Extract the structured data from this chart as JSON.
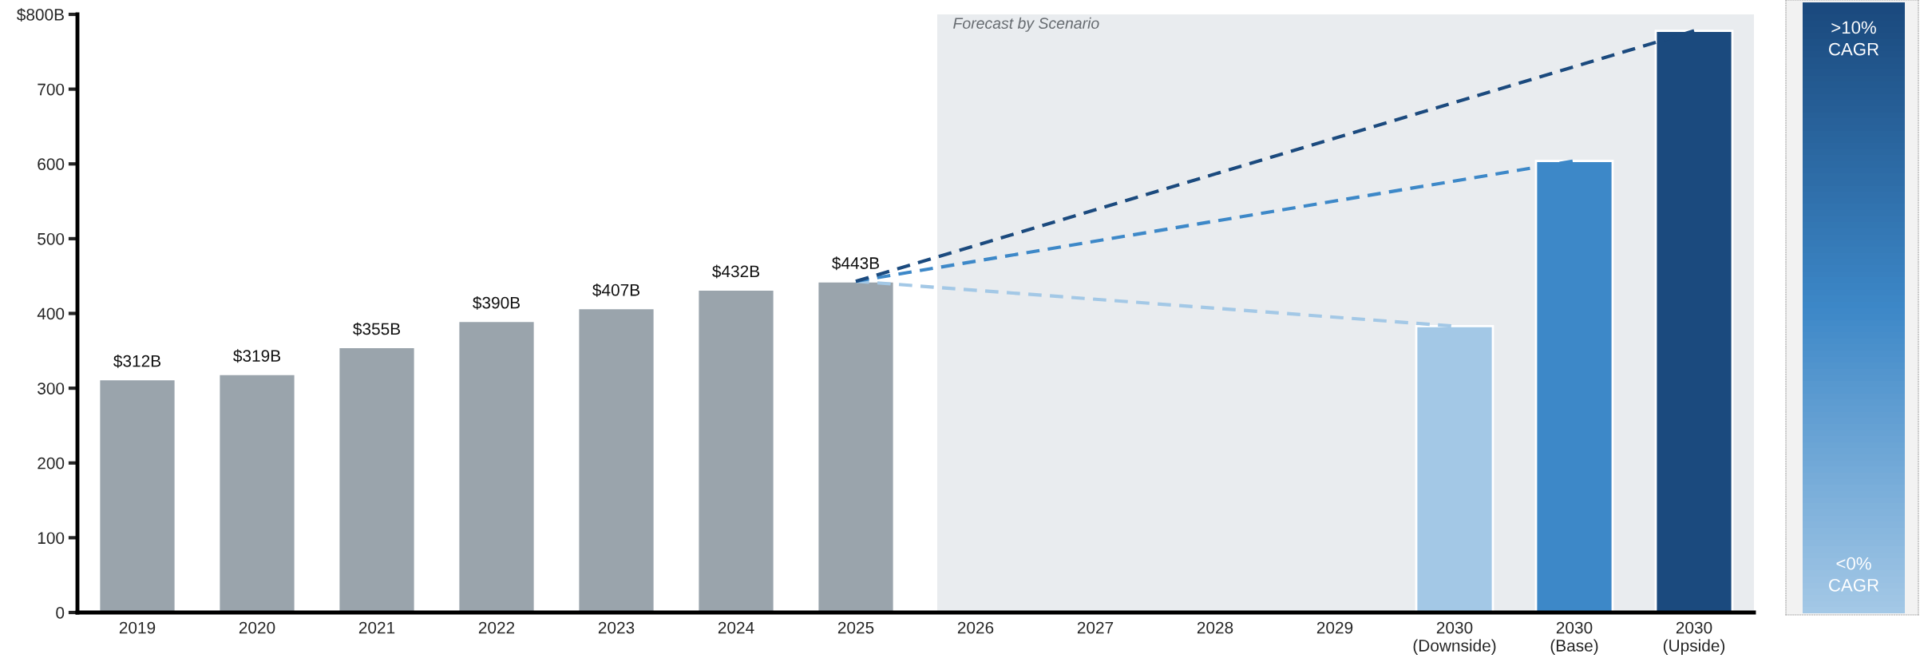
{
  "chart_data": {
    "type": "bar",
    "categories": [
      "2019",
      "2020",
      "2021",
      "2022",
      "2023",
      "2024",
      "2025",
      "2026",
      "2027",
      "2028",
      "2029",
      "2030\n(Downside)",
      "2030\n(Base)",
      "2030\n(Upside)"
    ],
    "series": [
      {
        "values": [
          312,
          319,
          355,
          390,
          407,
          432,
          443,
          null,
          null,
          null,
          null,
          383,
          604,
          778
        ],
        "colors": [
          "#9aa4ac",
          "#9aa4ac",
          "#9aa4ac",
          "#9aa4ac",
          "#9aa4ac",
          "#9aa4ac",
          "#9aa4ac",
          null,
          null,
          null,
          null,
          "#a3c8e6",
          "#3d88c8",
          "#1b4a7e"
        ],
        "value_labels": [
          "$312B",
          "$319B",
          "$355B",
          "$390B",
          "$407B",
          "$432B",
          "$443B",
          null,
          null,
          null,
          null,
          null,
          null,
          null
        ]
      },
      {
        "type": "line",
        "color": "#a3c8e6",
        "line_style": "dashed",
        "values": [
          null,
          null,
          null,
          null,
          null,
          null,
          443,
          null,
          null,
          null,
          null,
          383,
          null,
          null
        ]
      },
      {
        "type": "line",
        "color": "#3d88c8",
        "line_style": "dashed",
        "values": [
          null,
          null,
          null,
          null,
          null,
          null,
          443,
          null,
          null,
          null,
          null,
          null,
          604,
          null
        ]
      },
      {
        "type": "line",
        "color": "#1b4a7e",
        "line_style": "dashed",
        "values": [
          null,
          null,
          null,
          null,
          null,
          null,
          443,
          null,
          null,
          null,
          null,
          null,
          null,
          778
        ]
      }
    ],
    "ylim": [
      0,
      800
    ],
    "yticks": [
      0,
      100,
      200,
      300,
      400,
      500,
      600,
      700,
      {
        "value": 800,
        "label": "$800B"
      }
    ],
    "bands": [
      {
        "axis": "x",
        "from": "2026",
        "to": "2030\n(Upside)",
        "label": "Forecast by Scenario",
        "color": "#e9ecef"
      }
    ],
    "annotations": [
      ">10%\nCAGR",
      "<0%\nCAGR"
    ],
    "grid": false,
    "legend": false
  }
}
